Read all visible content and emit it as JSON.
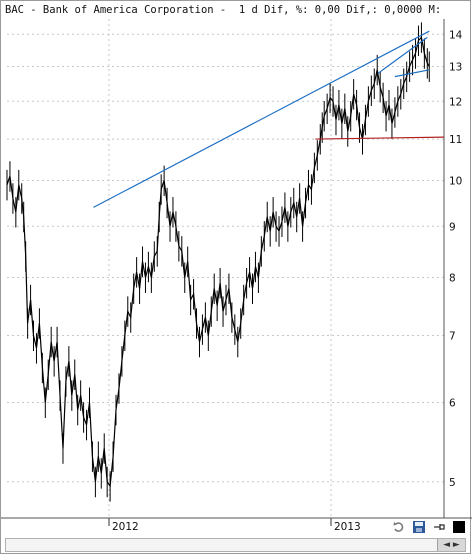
{
  "header": {
    "title": "BAC - Bank of America Corporation -  1 d Dif, %: 0,00 Dif,: 0,0000 M: "
  },
  "chart_data": {
    "type": "line",
    "title": "BAC - Bank of America Corporation",
    "ylim": [
      4.6,
      14.5
    ],
    "log_scale": true,
    "y_ticks": [
      5,
      6,
      7,
      8,
      9,
      10,
      11,
      12,
      13,
      14
    ],
    "x_ticks": [
      "2012",
      "2013"
    ],
    "grid": true,
    "series": [
      {
        "name": "BAC",
        "color": "#000000",
        "points": [
          [
            0,
            9.9
          ],
          [
            3,
            10.1
          ],
          [
            6,
            9.6
          ],
          [
            9,
            9.3
          ],
          [
            12,
            9.9
          ],
          [
            15,
            9.6
          ],
          [
            17,
            9.2
          ],
          [
            19,
            8.4
          ],
          [
            21,
            7.2
          ],
          [
            24,
            7.6
          ],
          [
            27,
            7.0
          ],
          [
            30,
            6.8
          ],
          [
            33,
            7.2
          ],
          [
            36,
            6.5
          ],
          [
            39,
            6.0
          ],
          [
            42,
            6.4
          ],
          [
            45,
            6.9
          ],
          [
            48,
            6.6
          ],
          [
            51,
            6.9
          ],
          [
            54,
            6.1
          ],
          [
            57,
            5.4
          ],
          [
            60,
            6.3
          ],
          [
            63,
            6.6
          ],
          [
            66,
            6.1
          ],
          [
            69,
            6.4
          ],
          [
            72,
            5.9
          ],
          [
            75,
            6.1
          ],
          [
            78,
            5.8
          ],
          [
            81,
            5.7
          ],
          [
            84,
            6.0
          ],
          [
            87,
            5.3
          ],
          [
            90,
            5.0
          ],
          [
            93,
            5.3
          ],
          [
            96,
            5.1
          ],
          [
            99,
            5.4
          ],
          [
            102,
            5.0
          ],
          [
            105,
            4.95
          ],
          [
            108,
            5.3
          ],
          [
            111,
            5.9
          ],
          [
            114,
            6.2
          ],
          [
            117,
            6.6
          ],
          [
            120,
            7.0
          ],
          [
            123,
            7.4
          ],
          [
            126,
            7.3
          ],
          [
            129,
            7.8
          ],
          [
            132,
            8.1
          ],
          [
            135,
            7.8
          ],
          [
            138,
            8.3
          ],
          [
            141,
            8.0
          ],
          [
            144,
            8.2
          ],
          [
            147,
            8.0
          ],
          [
            150,
            8.4
          ],
          [
            153,
            8.5
          ],
          [
            155,
            9.2
          ],
          [
            157,
            9.8
          ],
          [
            160,
            10.0
          ],
          [
            163,
            9.5
          ],
          [
            166,
            9.0
          ],
          [
            169,
            9.3
          ],
          [
            172,
            9.0
          ],
          [
            175,
            8.6
          ],
          [
            178,
            8.5
          ],
          [
            181,
            8.0
          ],
          [
            184,
            8.3
          ],
          [
            187,
            7.6
          ],
          [
            190,
            7.7
          ],
          [
            193,
            7.2
          ],
          [
            196,
            6.9
          ],
          [
            199,
            7.1
          ],
          [
            202,
            7.3
          ],
          [
            205,
            7.0
          ],
          [
            208,
            7.4
          ],
          [
            211,
            7.8
          ],
          [
            214,
            7.5
          ],
          [
            217,
            7.9
          ],
          [
            220,
            7.4
          ],
          [
            223,
            7.6
          ],
          [
            226,
            7.8
          ],
          [
            229,
            7.3
          ],
          [
            232,
            7.1
          ],
          [
            235,
            6.9
          ],
          [
            238,
            7.2
          ],
          [
            241,
            7.6
          ],
          [
            244,
            7.9
          ],
          [
            247,
            8.1
          ],
          [
            250,
            7.8
          ],
          [
            253,
            8.2
          ],
          [
            256,
            8.0
          ],
          [
            259,
            8.5
          ],
          [
            262,
            8.8
          ],
          [
            265,
            9.2
          ],
          [
            268,
            8.9
          ],
          [
            271,
            9.3
          ],
          [
            274,
            9.0
          ],
          [
            277,
            8.9
          ],
          [
            280,
            9.1
          ],
          [
            283,
            9.4
          ],
          [
            286,
            9.0
          ],
          [
            289,
            9.3
          ],
          [
            292,
            9.5
          ],
          [
            295,
            9.2
          ],
          [
            298,
            9.6
          ],
          [
            301,
            9.0
          ],
          [
            304,
            9.5
          ],
          [
            307,
            9.9
          ],
          [
            310,
            9.8
          ],
          [
            313,
            10.3
          ],
          [
            316,
            10.6
          ],
          [
            319,
            11.0
          ],
          [
            321,
            11.3
          ],
          [
            323,
            11.6
          ],
          [
            326,
            11.8
          ],
          [
            329,
            12.1
          ],
          [
            332,
            12.0
          ],
          [
            335,
            11.5
          ],
          [
            338,
            11.9
          ],
          [
            341,
            11.4
          ],
          [
            344,
            11.8
          ],
          [
            347,
            11.2
          ],
          [
            350,
            11.6
          ],
          [
            353,
            12.2
          ],
          [
            356,
            11.9
          ],
          [
            359,
            11.3
          ],
          [
            362,
            11.0
          ],
          [
            365,
            11.5
          ],
          [
            368,
            12.0
          ],
          [
            371,
            12.3
          ],
          [
            374,
            12.5
          ],
          [
            377,
            12.9
          ],
          [
            380,
            12.4
          ],
          [
            383,
            12.1
          ],
          [
            386,
            11.6
          ],
          [
            389,
            11.9
          ],
          [
            392,
            11.4
          ],
          [
            395,
            11.7
          ],
          [
            398,
            12.0
          ],
          [
            401,
            12.2
          ],
          [
            404,
            12.5
          ],
          [
            407,
            12.7
          ],
          [
            410,
            13.0
          ],
          [
            413,
            13.2
          ],
          [
            416,
            13.4
          ],
          [
            419,
            13.8
          ],
          [
            422,
            13.9
          ],
          [
            425,
            13.4
          ],
          [
            428,
            13.1
          ],
          [
            430,
            13.0
          ]
        ]
      }
    ],
    "annotations": [
      {
        "name": "upper-trendline",
        "color": "#1f6fc4",
        "from": [
          88,
          9.4
        ],
        "to": [
          430,
          14.1
        ]
      },
      {
        "name": "channel-upper-line",
        "color": "#1f6fc4",
        "from": [
          378,
          12.8
        ],
        "to": [
          428,
          13.9
        ]
      },
      {
        "name": "channel-lower-line",
        "color": "#1f6fc4",
        "from": [
          395,
          12.7
        ],
        "to": [
          430,
          12.9
        ]
      },
      {
        "name": "support-line",
        "color": "#b02020",
        "from": [
          314,
          11.0
        ],
        "to": [
          445,
          11.05
        ]
      }
    ]
  },
  "toolbar": {
    "refresh_icon": "refresh-icon",
    "save_icon": "save-icon",
    "pin_icon": "pin-icon",
    "color_swatch": "#000000"
  },
  "scrollbar": {
    "thumb_label": "◄ ►"
  }
}
